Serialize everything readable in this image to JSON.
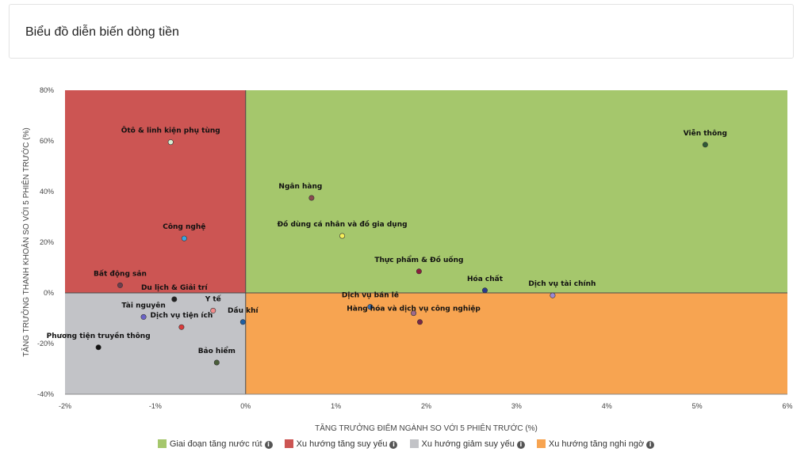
{
  "header": {
    "title": "Biểu đồ diễn biến dòng tiền"
  },
  "chart_data": {
    "type": "scatter",
    "xlabel": "TĂNG TRƯỞNG ĐIỂM NGÀNH SO VỚI 5 PHIÊN TRƯỚC (%)",
    "ylabel": "TĂNG TRƯỞNG THANH KHOẢN SO VỚI 5 PHIÊN TRƯỚC (%)",
    "xlim": [
      -2,
      6
    ],
    "ylim": [
      -40,
      80
    ],
    "x_ticks": [
      -2,
      -1,
      0,
      1,
      2,
      3,
      4,
      5,
      6
    ],
    "x_tick_labels": [
      "-2%",
      "-1%",
      "0%",
      "1%",
      "2%",
      "3%",
      "4%",
      "5%",
      "6%"
    ],
    "y_ticks": [
      80,
      60,
      40,
      20,
      0,
      -20,
      -40
    ],
    "y_tick_labels": [
      "80%",
      "60%",
      "40%",
      "20%",
      "0%",
      "-20%",
      "-40%"
    ],
    "quadrants": [
      {
        "name": "Giai đoạn tăng nước rút",
        "color": "#a5c76c",
        "region": "top-right"
      },
      {
        "name": "Xu hướng tăng suy yếu",
        "color": "#cc5553",
        "region": "top-left"
      },
      {
        "name": "Xu hướng giảm suy yếu",
        "color": "#c2c3c7",
        "region": "bottom-left"
      },
      {
        "name": "Xu hướng tăng nghi ngờ",
        "color": "#f7a451",
        "region": "bottom-right"
      }
    ],
    "points": [
      {
        "name": "Viễn thông",
        "x": 5.09,
        "y": 58.5,
        "color": "#2e5a35",
        "label_dx": 0,
        "label_dy": -12,
        "anchor": "middle"
      },
      {
        "name": "Ôtô & linh kiện phụ tùng",
        "x": -0.83,
        "y": 59.5,
        "color": "#d7eed3",
        "label_dx": 0,
        "label_dy": -12,
        "anchor": "middle"
      },
      {
        "name": "Ngân hàng",
        "x": 0.73,
        "y": 37.5,
        "color": "#8a4a4f",
        "label_dx": -14,
        "label_dy": -12,
        "anchor": "middle"
      },
      {
        "name": "Đồ dùng cá nhân và đồ gia dụng",
        "x": 1.07,
        "y": 22.5,
        "color": "#f5ee5a",
        "label_dx": 0,
        "label_dy": -12,
        "anchor": "middle"
      },
      {
        "name": "Công nghệ",
        "x": -0.68,
        "y": 21.5,
        "color": "#3aa6e0",
        "label_dx": 0,
        "label_dy": -12,
        "anchor": "middle"
      },
      {
        "name": "Thực phẩm & Đồ uống",
        "x": 1.92,
        "y": 8.5,
        "color": "#8b1e3c",
        "label_dx": 0,
        "label_dy": -12,
        "anchor": "middle"
      },
      {
        "name": "Bất động sản",
        "x": -1.39,
        "y": 3.0,
        "color": "#6d3d4d",
        "label_dx": 0,
        "label_dy": -12,
        "anchor": "middle"
      },
      {
        "name": "Hóa chất",
        "x": 2.65,
        "y": 1.0,
        "color": "#2a3a8c",
        "label_dx": 0,
        "label_dy": -12,
        "anchor": "middle"
      },
      {
        "name": "Dịch vụ tài chính",
        "x": 3.4,
        "y": -1.0,
        "color": "#9b88d4",
        "label_dx": 12,
        "label_dy": -12,
        "anchor": "middle"
      },
      {
        "name": "Du lịch & Giải trí",
        "x": -0.79,
        "y": -2.5,
        "color": "#222222",
        "label_dx": 0,
        "label_dy": -12,
        "anchor": "middle"
      },
      {
        "name": "Dịch vụ bán lẻ",
        "x": 1.38,
        "y": -5.5,
        "color": "#3b6fb0",
        "label_dx": 0,
        "label_dy": -12,
        "anchor": "middle"
      },
      {
        "name": "Y tế",
        "x": -0.36,
        "y": -7.0,
        "color": "#f08a8a",
        "label_dx": 0,
        "label_dy": -12,
        "anchor": "middle"
      },
      {
        "name": "Hàng hóa và dịch vụ công nghiệp",
        "x": 1.86,
        "y": -8.0,
        "color": "#9f6a8a",
        "label_dx": 0,
        "label_dy": -3,
        "anchor": "middle"
      },
      {
        "name": "Tài nguyên",
        "x": -1.13,
        "y": -9.5,
        "color": "#6b63c9",
        "label_dx": 0,
        "label_dy": -12,
        "anchor": "middle"
      },
      {
        "name": "Dầu khí",
        "x": -0.03,
        "y": -11.5,
        "color": "#1f5fa3",
        "label_dx": 0,
        "label_dy": -12,
        "anchor": "middle"
      },
      {
        "name": "Dịch vụ tiện ích",
        "x": -0.71,
        "y": -13.5,
        "color": "#d93b3b",
        "label_dx": 0,
        "label_dy": -12,
        "anchor": "middle"
      },
      {
        "name": "",
        "x": 1.93,
        "y": -11.5,
        "color": "#7a2846",
        "label_dx": 0,
        "label_dy": 0,
        "anchor": "middle"
      },
      {
        "name": "Phương tiện truyền thông",
        "x": -1.63,
        "y": -21.5,
        "color": "#111111",
        "label_dx": 0,
        "label_dy": -12,
        "anchor": "middle"
      },
      {
        "name": "Bảo hiểm",
        "x": -0.32,
        "y": -27.5,
        "color": "#4a5e3a",
        "label_dx": 0,
        "label_dy": -12,
        "anchor": "middle"
      }
    ]
  },
  "legend": {
    "items": [
      {
        "label": "Giai đoạn tăng nước rút",
        "color": "#a5c76c",
        "info_icon": "info-icon"
      },
      {
        "label": "Xu hướng tăng suy yếu",
        "color": "#cc5553",
        "info_icon": "info-icon"
      },
      {
        "label": "Xu hướng giảm suy yếu",
        "color": "#c2c3c7",
        "info_icon": "info-icon"
      },
      {
        "label": "Xu hướng tăng nghi ngờ",
        "color": "#f7a451",
        "info_icon": "info-icon"
      }
    ]
  }
}
